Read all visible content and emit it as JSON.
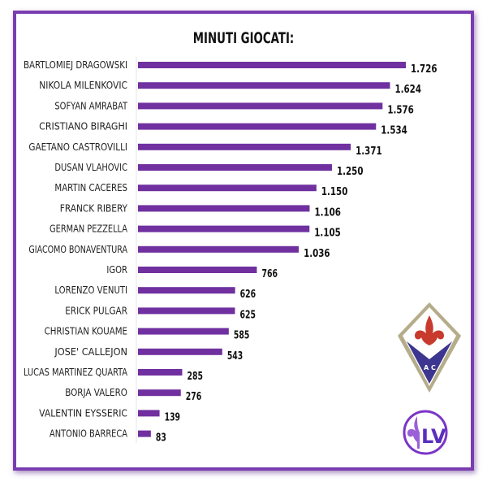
{
  "chart_data": {
    "type": "bar",
    "orientation": "horizontal",
    "title": "MINUTI GIOCATI:",
    "categories": [
      "BARTLOMIEJ DRAGOWSKI",
      "NIKOLA MILENKOVIC",
      "SOFYAN AMRABAT",
      "CRISTIANO BIRAGHI",
      "GAETANO CASTROVILLI",
      "DUSAN VLAHOVIC",
      "MARTIN CACERES",
      "FRANCK RIBERY",
      "GERMAN PEZZELLA",
      "GIACOMO BONAVENTURA",
      "IGOR",
      "LORENZO VENUTI",
      "ERICK PULGAR",
      "CHRISTIAN KOUAME",
      "JOSE' CALLEJON",
      "LUCAS MARTINEZ QUARTA",
      "BORJA VALERO",
      "VALENTIN EYSSERIC",
      "ANTONIO BARRECA"
    ],
    "values": [
      1726,
      1624,
      1576,
      1534,
      1371,
      1250,
      1150,
      1106,
      1105,
      1036,
      766,
      626,
      625,
      585,
      543,
      285,
      276,
      139,
      83
    ],
    "value_labels": [
      "1.726",
      "1.624",
      "1.576",
      "1.534",
      "1.371",
      "1.250",
      "1.150",
      "1.106",
      "1.105",
      "1.036",
      "766",
      "626",
      "625",
      "585",
      "543",
      "285",
      "276",
      "139",
      "83"
    ],
    "bar_color": "#7030a0",
    "grid": false,
    "legend": "none"
  },
  "logos": {
    "club_crest": "AC",
    "brand": "LV"
  },
  "colors": {
    "frame": "#7a3db0"
  }
}
